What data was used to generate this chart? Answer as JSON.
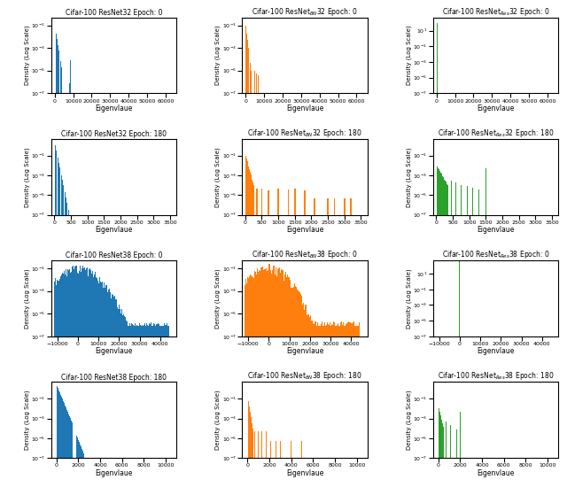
{
  "colors": [
    "#1f77b4",
    "#ff7f0e",
    "#2ca02c"
  ],
  "col_titles": [
    [
      "Cifar-100 ResNet32 Epoch: 0",
      "Cifar-100 ResNet$_{BN}$32 Epoch: 0",
      "Cifar-100 ResNet$_{Res}$32 Epoch: 0"
    ],
    [
      "Cifar-100 ResNet32 Epoch: 180",
      "Cifar-100 ResNet$_{BN}$32 Epoch: 180",
      "Cifar-100 ResNet$_{Res}$32 Epoch: 180"
    ],
    [
      "Cifar-100 ResNet38 Epoch: 0",
      "Cifar-100 ResNet$_{BN}$38 Epoch: 0",
      "Cifar-100 ResNet$_{Res}$38 Epoch: 0"
    ],
    [
      "Cifar-100 ResNet38 Epoch: 180",
      "Cifar-100 ResNet$_{BN}$38 Epoch: 180",
      "Cifar-100 ResNet$_{Res}$38 Epoch: 180"
    ]
  ],
  "xlabel": "Eigenvlaue",
  "ylabel": "Density (Log Scale)"
}
